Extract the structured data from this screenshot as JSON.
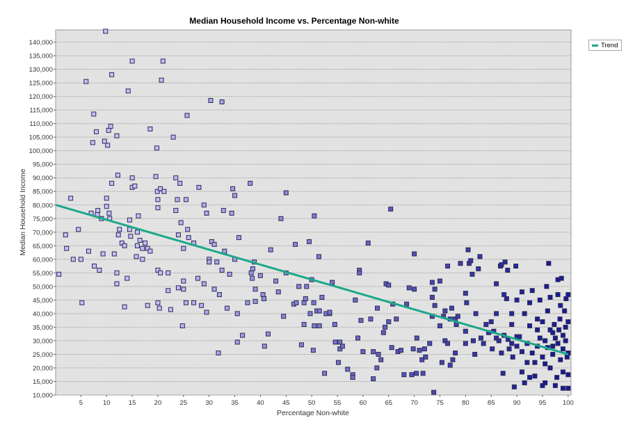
{
  "chart_data": {
    "type": "scatter",
    "title": "Median Household Income vs. Percentage Non-white",
    "xlabel": "Percentage Non-white",
    "ylabel": "Median Household Income",
    "xlim": [
      0,
      100.5
    ],
    "ylim": [
      10000,
      144500
    ],
    "x_ticks": [
      5,
      10,
      15,
      20,
      25,
      30,
      35,
      40,
      45,
      50,
      55,
      60,
      65,
      70,
      75,
      80,
      85,
      90,
      95,
      100
    ],
    "y_ticks": [
      10000,
      15000,
      20000,
      25000,
      30000,
      35000,
      40000,
      45000,
      50000,
      55000,
      60000,
      65000,
      70000,
      75000,
      80000,
      85000,
      90000,
      95000,
      100000,
      105000,
      110000,
      115000,
      120000,
      125000,
      130000,
      135000,
      140000
    ],
    "grid": "horizontal dotted",
    "legend": {
      "position": "top-right",
      "entries": [
        {
          "name": "Trend",
          "color": "#1aa98a"
        }
      ]
    },
    "colors": {
      "plot_bg": "#e2e2e2",
      "point_light": "#c6bff4",
      "point_dark": "#1a1a90",
      "point_border": "#2a2a5a",
      "trend": "#1aa98a"
    },
    "trend": {
      "name": "Trend",
      "x": [
        0,
        100
      ],
      "y": [
        80000,
        25000
      ]
    },
    "points_thousands": [
      [
        0.7,
        54.5
      ],
      [
        2,
        69
      ],
      [
        2.2,
        64
      ],
      [
        3,
        82.5
      ],
      [
        3.5,
        60
      ],
      [
        4.5,
        71
      ],
      [
        5,
        60
      ],
      [
        5.2,
        44
      ],
      [
        6,
        125.5
      ],
      [
        6.5,
        63
      ],
      [
        7,
        77
      ],
      [
        7.3,
        103
      ],
      [
        7.5,
        113.5
      ],
      [
        7.6,
        57.5
      ],
      [
        8,
        107
      ],
      [
        8.2,
        76.5
      ],
      [
        8.3,
        78
      ],
      [
        8.6,
        56
      ],
      [
        9,
        75
      ],
      [
        9.3,
        62
      ],
      [
        9.6,
        103.5
      ],
      [
        9.8,
        144
      ],
      [
        10,
        82.5
      ],
      [
        10,
        79.5
      ],
      [
        10.2,
        102
      ],
      [
        10.4,
        107.5
      ],
      [
        10.5,
        77
      ],
      [
        10.6,
        75
      ],
      [
        10.8,
        109
      ],
      [
        11,
        128
      ],
      [
        11,
        88
      ],
      [
        11.5,
        62
      ],
      [
        12,
        105.5
      ],
      [
        12,
        55
      ],
      [
        12,
        51
      ],
      [
        12.2,
        91
      ],
      [
        12.3,
        69
      ],
      [
        12.5,
        71
      ],
      [
        13,
        66
      ],
      [
        13.5,
        65
      ],
      [
        13.5,
        42.5
      ],
      [
        14,
        53
      ],
      [
        14.2,
        122
      ],
      [
        14.5,
        74.5
      ],
      [
        14.5,
        71
      ],
      [
        14.7,
        68.5
      ],
      [
        15,
        90
      ],
      [
        15,
        133
      ],
      [
        15,
        86.5
      ],
      [
        15.5,
        87
      ],
      [
        15.8,
        61
      ],
      [
        16,
        70
      ],
      [
        16,
        65
      ],
      [
        16.2,
        76
      ],
      [
        16.5,
        67
      ],
      [
        17,
        64
      ],
      [
        17,
        60
      ],
      [
        17.5,
        66
      ],
      [
        18,
        64
      ],
      [
        18,
        43
      ],
      [
        18.5,
        108
      ],
      [
        18.5,
        63
      ],
      [
        19.6,
        90.5
      ],
      [
        19.8,
        101
      ],
      [
        19.9,
        85
      ],
      [
        20,
        82
      ],
      [
        20,
        79
      ],
      [
        20,
        56
      ],
      [
        20,
        44
      ],
      [
        20.3,
        42
      ],
      [
        20.5,
        86
      ],
      [
        20.5,
        55
      ],
      [
        20.7,
        126
      ],
      [
        21,
        133
      ],
      [
        21.2,
        85
      ],
      [
        22,
        48.5
      ],
      [
        22,
        55
      ],
      [
        22.5,
        41.5
      ],
      [
        23,
        105
      ],
      [
        23.5,
        90
      ],
      [
        23.5,
        78
      ],
      [
        23.8,
        82
      ],
      [
        24,
        69
      ],
      [
        24,
        49.5
      ],
      [
        24.3,
        88
      ],
      [
        24.5,
        73.5
      ],
      [
        24.8,
        35.5
      ],
      [
        25,
        49
      ],
      [
        25,
        64
      ],
      [
        25,
        52
      ],
      [
        25.5,
        82
      ],
      [
        25.5,
        44
      ],
      [
        25.7,
        113
      ],
      [
        25.8,
        71
      ],
      [
        26,
        68
      ],
      [
        27,
        66
      ],
      [
        27,
        44
      ],
      [
        27.8,
        53
      ],
      [
        28,
        86.5
      ],
      [
        28.5,
        43
      ],
      [
        29,
        80
      ],
      [
        29,
        51
      ],
      [
        29.5,
        77
      ],
      [
        29.5,
        40.5
      ],
      [
        30,
        60
      ],
      [
        30,
        59
      ],
      [
        30.3,
        118.5
      ],
      [
        30.5,
        66.5
      ],
      [
        31,
        49
      ],
      [
        31,
        65.5
      ],
      [
        31.5,
        59
      ],
      [
        31.8,
        25.5
      ],
      [
        32,
        47
      ],
      [
        32.5,
        118
      ],
      [
        32.5,
        56
      ],
      [
        32.8,
        78
      ],
      [
        33,
        63
      ],
      [
        33.5,
        42
      ],
      [
        34,
        54.5
      ],
      [
        34.4,
        77
      ],
      [
        34.6,
        86
      ],
      [
        35,
        83.5
      ],
      [
        35,
        60
      ],
      [
        35.5,
        40
      ],
      [
        35.5,
        29.5
      ],
      [
        35.8,
        68
      ],
      [
        36.5,
        32
      ],
      [
        37.5,
        44
      ],
      [
        38,
        88
      ],
      [
        38.2,
        55
      ],
      [
        38.4,
        53
      ],
      [
        38.5,
        56.5
      ],
      [
        38.8,
        59
      ],
      [
        39,
        44.5
      ],
      [
        39,
        49
      ],
      [
        40,
        54
      ],
      [
        40.5,
        47
      ],
      [
        40.7,
        45.5
      ],
      [
        40.8,
        28
      ],
      [
        41.5,
        32.5
      ],
      [
        42,
        63.5
      ],
      [
        43,
        52
      ],
      [
        43.5,
        48
      ],
      [
        44,
        75
      ],
      [
        44.5,
        39
      ],
      [
        45,
        55
      ],
      [
        45,
        84.5
      ],
      [
        46.5,
        43.5
      ],
      [
        46.8,
        65.5
      ],
      [
        47,
        44
      ],
      [
        47.5,
        50
      ],
      [
        48,
        28.5
      ],
      [
        48.5,
        36
      ],
      [
        48.5,
        44
      ],
      [
        48.8,
        45.5
      ],
      [
        49,
        50
      ],
      [
        49.5,
        66.5
      ],
      [
        49.7,
        40
      ],
      [
        50,
        52.5
      ],
      [
        50.3,
        26.5
      ],
      [
        50.4,
        44
      ],
      [
        50.5,
        76
      ],
      [
        50.5,
        35.5
      ],
      [
        51,
        41
      ],
      [
        51.4,
        61
      ],
      [
        51.5,
        35.5
      ],
      [
        51.5,
        41
      ],
      [
        52,
        46
      ],
      [
        52.5,
        18
      ],
      [
        52.8,
        40
      ],
      [
        53.5,
        40
      ],
      [
        53.5,
        40.5
      ],
      [
        54,
        51.5
      ],
      [
        54.5,
        36
      ],
      [
        54.6,
        29.5
      ],
      [
        55.2,
        22
      ],
      [
        55.5,
        27
      ],
      [
        55.5,
        29.5
      ],
      [
        56,
        28
      ],
      [
        57,
        19.5
      ],
      [
        58,
        17.5
      ],
      [
        58,
        16.5
      ],
      [
        58.5,
        45
      ],
      [
        59,
        31
      ],
      [
        59.3,
        56
      ],
      [
        59.3,
        55
      ],
      [
        59.6,
        37.5
      ],
      [
        60,
        26
      ],
      [
        61,
        66
      ],
      [
        61.5,
        38
      ],
      [
        62,
        26
      ],
      [
        62,
        16
      ],
      [
        62.7,
        20
      ],
      [
        62.8,
        42
      ],
      [
        63,
        25
      ],
      [
        63.5,
        23
      ],
      [
        64,
        33
      ],
      [
        64.3,
        35
      ],
      [
        64.5,
        51
      ],
      [
        65,
        37
      ],
      [
        65,
        50.5
      ],
      [
        65.4,
        78.5
      ],
      [
        65.6,
        27.5
      ],
      [
        65.8,
        43.5
      ],
      [
        66.5,
        38
      ],
      [
        66.8,
        26
      ],
      [
        67.4,
        26.5
      ],
      [
        68,
        17.5
      ],
      [
        68.5,
        43.5
      ],
      [
        69,
        49.5
      ],
      [
        69.5,
        17.5
      ],
      [
        69.8,
        27
      ],
      [
        70,
        62
      ],
      [
        70,
        49
      ],
      [
        70.4,
        18
      ],
      [
        70.5,
        31
      ],
      [
        71,
        26.5
      ],
      [
        71.5,
        23
      ],
      [
        71.7,
        18
      ],
      [
        72,
        27
      ],
      [
        72.2,
        24
      ],
      [
        73,
        29
      ],
      [
        73.5,
        39
      ],
      [
        73.5,
        46
      ],
      [
        73.5,
        51.5
      ],
      [
        73.8,
        11
      ],
      [
        74,
        49
      ],
      [
        74,
        43
      ],
      [
        75,
        35.5
      ],
      [
        75,
        52
      ],
      [
        75.4,
        22
      ],
      [
        75.7,
        39
      ],
      [
        76,
        41
      ],
      [
        76,
        30
      ],
      [
        76.5,
        29
      ],
      [
        76.5,
        57.5
      ],
      [
        77,
        38
      ],
      [
        77,
        21
      ],
      [
        77.3,
        42
      ],
      [
        77.5,
        23
      ],
      [
        78,
        38
      ],
      [
        78,
        25.5
      ],
      [
        78.2,
        36
      ],
      [
        78.5,
        39
      ],
      [
        79,
        58.5
      ],
      [
        80,
        47.5
      ],
      [
        80,
        33.5
      ],
      [
        80,
        29
      ],
      [
        80.2,
        44
      ],
      [
        80.5,
        63.5
      ],
      [
        80.7,
        58.5
      ],
      [
        81,
        59.5
      ],
      [
        81.3,
        54.5
      ],
      [
        81.5,
        30
      ],
      [
        81.8,
        25
      ],
      [
        82,
        40
      ],
      [
        82.5,
        56.5
      ],
      [
        82.8,
        61
      ],
      [
        83,
        31
      ],
      [
        83.5,
        29
      ],
      [
        84,
        36
      ],
      [
        84.5,
        33
      ],
      [
        85,
        37
      ],
      [
        85.2,
        27
      ],
      [
        85.5,
        33.5
      ],
      [
        86,
        51
      ],
      [
        86,
        40
      ],
      [
        86,
        31
      ],
      [
        86.5,
        30
      ],
      [
        86.8,
        57.5
      ],
      [
        87,
        58
      ],
      [
        87,
        25.5
      ],
      [
        87.3,
        18
      ],
      [
        87.5,
        32
      ],
      [
        87.5,
        47
      ],
      [
        87.7,
        59
      ],
      [
        88,
        45.5
      ],
      [
        88.2,
        56
      ],
      [
        88.3,
        30.5
      ],
      [
        88.5,
        27
      ],
      [
        89,
        40
      ],
      [
        89,
        36
      ],
      [
        89,
        29
      ],
      [
        89.2,
        24
      ],
      [
        89.5,
        13
      ],
      [
        89.8,
        57.5
      ],
      [
        90,
        45
      ],
      [
        90,
        31.5
      ],
      [
        90,
        28
      ],
      [
        90.5,
        31.5
      ],
      [
        91,
        48
      ],
      [
        91,
        26
      ],
      [
        91,
        18.5
      ],
      [
        91.5,
        14.5
      ],
      [
        91.5,
        40
      ],
      [
        92,
        29
      ],
      [
        92,
        22
      ],
      [
        92.5,
        44
      ],
      [
        92.5,
        35.5
      ],
      [
        92.5,
        16.5
      ],
      [
        93,
        48.5
      ],
      [
        93,
        25.5
      ],
      [
        93.5,
        22
      ],
      [
        93.5,
        17
      ],
      [
        94,
        38
      ],
      [
        94,
        34
      ],
      [
        94,
        28
      ],
      [
        94.5,
        45
      ],
      [
        94.5,
        31
      ],
      [
        95,
        37
      ],
      [
        95,
        24
      ],
      [
        95,
        13.5
      ],
      [
        95.5,
        30
      ],
      [
        95.5,
        21.5
      ],
      [
        95.5,
        14.5
      ],
      [
        95.8,
        50
      ],
      [
        96,
        27.5
      ],
      [
        96,
        41
      ],
      [
        96.2,
        58.5
      ],
      [
        96.5,
        34
      ],
      [
        96.5,
        20
      ],
      [
        96.5,
        46
      ],
      [
        97,
        33
      ],
      [
        97,
        28
      ],
      [
        97,
        25
      ],
      [
        97.3,
        36
      ],
      [
        97.5,
        31
      ],
      [
        97.5,
        13.5
      ],
      [
        97.8,
        16.5
      ],
      [
        98,
        29
      ],
      [
        98,
        47
      ],
      [
        98,
        52.5
      ],
      [
        98.2,
        34
      ],
      [
        98.4,
        38
      ],
      [
        98.5,
        23
      ],
      [
        98.5,
        43
      ],
      [
        98.7,
        53
      ],
      [
        99,
        32
      ],
      [
        99,
        27
      ],
      [
        99,
        18.5
      ],
      [
        99,
        12.5
      ],
      [
        99.3,
        41
      ],
      [
        99.5,
        30
      ],
      [
        99.5,
        35
      ],
      [
        99.6,
        45.5
      ],
      [
        99.8,
        24
      ],
      [
        100,
        37
      ],
      [
        100,
        25.5
      ],
      [
        100,
        17.5
      ],
      [
        100,
        12.5
      ],
      [
        100,
        47
      ]
    ]
  }
}
